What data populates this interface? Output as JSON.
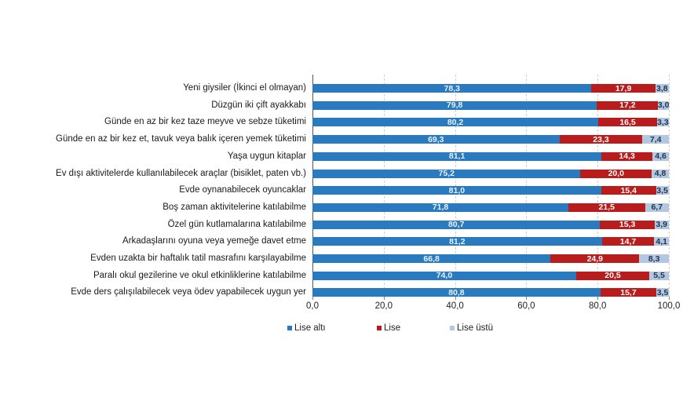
{
  "chart_data": {
    "type": "bar",
    "orientation": "horizontal",
    "stacked": true,
    "title": "",
    "xlabel": "",
    "ylabel": "",
    "xlim": [
      0,
      100
    ],
    "grid": true,
    "legend_position": "bottom",
    "x_ticks": [
      "0,0",
      "20,0",
      "40,0",
      "60,0",
      "80,0",
      "100,0"
    ],
    "categories": [
      "Yeni giysiler (İkinci el olmayan)",
      "Düzgün iki çift ayakkabı",
      "Günde en az bir kez taze meyve ve sebze tüketimi",
      "Günde en az bir kez et, tavuk veya balık içeren yemek tüketimi",
      "Yaşa uygun kitaplar",
      "Ev dışı aktivitelerde kullanılabilecek araçlar (bisiklet, paten vb.)",
      "Evde oynanabilecek oyuncaklar",
      "Boş zaman aktivitelerine katılabilme",
      "Özel gün kutlamalarına katılabilme",
      "Arkadaşlarını oyuna veya yemeğe davet etme",
      "Evden uzakta bir haftalık tatil masrafını karşılayabilme",
      "Paralı okul gezilerine ve okul etkinliklerine katılabilme",
      "Evde ders çalışılabilecek veya ödev yapabilecek uygun yer"
    ],
    "series": [
      {
        "name": "Lise altı",
        "color": "#2a7abf",
        "values": [
          78.3,
          79.8,
          80.2,
          69.3,
          81.1,
          75.2,
          81.0,
          71.8,
          80.7,
          81.2,
          66.8,
          74.0,
          80.8
        ],
        "labels": [
          "78,3",
          "79,8",
          "80,2",
          "69,3",
          "81,1",
          "75,2",
          "81,0",
          "71,8",
          "80,7",
          "81,2",
          "66,8",
          "74,0",
          "80,8"
        ]
      },
      {
        "name": "Lise",
        "color": "#b81c1c",
        "values": [
          17.9,
          17.2,
          16.5,
          23.3,
          14.3,
          20.0,
          15.4,
          21.5,
          15.3,
          14.7,
          24.9,
          20.5,
          15.7
        ],
        "labels": [
          "17,9",
          "17,2",
          "16,5",
          "23,3",
          "14,3",
          "20,0",
          "15,4",
          "21,5",
          "15,3",
          "14,7",
          "24,9",
          "20,5",
          "15,7"
        ]
      },
      {
        "name": "Lise üstü",
        "color": "#b3c7e0",
        "values": [
          3.8,
          3.0,
          3.3,
          7.4,
          4.6,
          4.8,
          3.5,
          6.7,
          3.9,
          4.1,
          8.3,
          5.5,
          3.5
        ],
        "labels": [
          "3,8",
          "3,0",
          "3,3",
          "7,4",
          "4,6",
          "4,8",
          "3,5",
          "6,7",
          "3,9",
          "4,1",
          "8,3",
          "5,5",
          "3,5"
        ]
      }
    ]
  }
}
